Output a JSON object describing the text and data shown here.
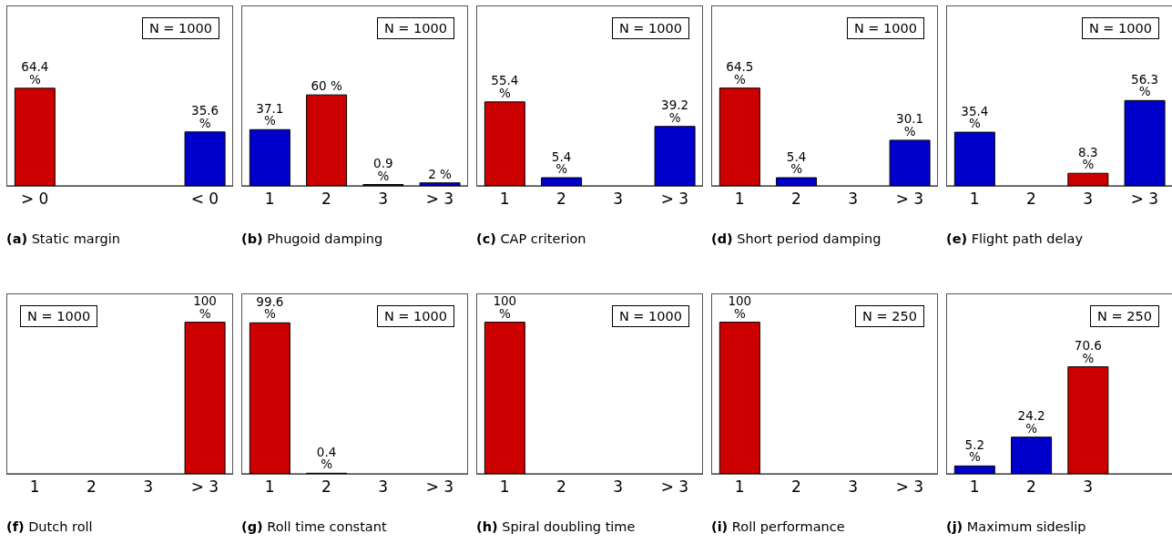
{
  "chart_data": [
    {
      "type": "bar",
      "title": "(a) Static margin",
      "categories": [
        "> 0",
        null,
        null,
        "< 0"
      ],
      "values": [
        64.4,
        null,
        null,
        35.6
      ],
      "colors": [
        "#cc0000",
        null,
        null,
        "#0000cc"
      ],
      "value_labels": [
        "64.4 %",
        null,
        null,
        "35.6 %"
      ],
      "annotations": [
        "N = 1000"
      ]
    },
    {
      "type": "bar",
      "title": "(b) Phugoid damping",
      "categories": [
        "1",
        "2",
        "3",
        "> 3"
      ],
      "values": [
        37.1,
        60,
        0.9,
        2
      ],
      "colors": [
        "#0000cc",
        "#cc0000",
        "#0000cc",
        "#0000cc"
      ],
      "value_labels": [
        "37.1 %",
        "60 %",
        "0.9 %",
        "2 %"
      ],
      "annotations": [
        "N = 1000"
      ]
    },
    {
      "type": "bar",
      "title": "(c) CAP criterion",
      "categories": [
        "1",
        "2",
        "3",
        "> 3"
      ],
      "values": [
        55.4,
        5.4,
        null,
        39.2
      ],
      "colors": [
        "#cc0000",
        "#0000cc",
        null,
        "#0000cc"
      ],
      "value_labels": [
        "55.4 %",
        "5.4 %",
        null,
        "39.2 %"
      ],
      "annotations": [
        "N = 1000"
      ]
    },
    {
      "type": "bar",
      "title": "(d) Short period damping",
      "categories": [
        "1",
        "2",
        "3",
        "> 3"
      ],
      "values": [
        64.5,
        5.4,
        null,
        30.1
      ],
      "colors": [
        "#cc0000",
        "#0000cc",
        null,
        "#0000cc"
      ],
      "value_labels": [
        "64.5 %",
        "5.4 %",
        null,
        "30.1 %"
      ],
      "annotations": [
        "N = 1000"
      ]
    },
    {
      "type": "bar",
      "title": "(e) Flight path delay",
      "categories": [
        "1",
        "2",
        "3",
        "> 3"
      ],
      "values": [
        35.4,
        null,
        8.3,
        56.3
      ],
      "colors": [
        "#0000cc",
        null,
        "#cc0000",
        "#0000cc"
      ],
      "value_labels": [
        "35.4 %",
        null,
        "8.3 %",
        "56.3 %"
      ],
      "annotations": [
        "N = 1000"
      ]
    },
    {
      "type": "bar",
      "title": "(f) Dutch roll",
      "categories": [
        "1",
        "2",
        "3",
        "> 3"
      ],
      "values": [
        null,
        null,
        null,
        100
      ],
      "colors": [
        null,
        null,
        null,
        "#cc0000"
      ],
      "value_labels": [
        null,
        null,
        null,
        "100 %"
      ],
      "annotations": [
        "N = 1000"
      ]
    },
    {
      "type": "bar",
      "title": "(g) Roll time constant",
      "categories": [
        "1",
        "2",
        "3",
        "> 3"
      ],
      "values": [
        99.6,
        0.4,
        null,
        null
      ],
      "colors": [
        "#cc0000",
        "#0000cc",
        null,
        null
      ],
      "value_labels": [
        "99.6 %",
        "0.4 %",
        null,
        null
      ],
      "annotations": [
        "N = 1000"
      ]
    },
    {
      "type": "bar",
      "title": "(h) Spiral doubling time",
      "categories": [
        "1",
        "2",
        "3",
        "> 3"
      ],
      "values": [
        100,
        null,
        null,
        null
      ],
      "colors": [
        "#cc0000",
        null,
        null,
        null
      ],
      "value_labels": [
        "100 %",
        null,
        null,
        null
      ],
      "annotations": [
        "N = 1000"
      ]
    },
    {
      "type": "bar",
      "title": "(i) Roll performance",
      "categories": [
        "1",
        "2",
        "3",
        "> 3"
      ],
      "values": [
        100,
        null,
        null,
        null
      ],
      "colors": [
        "#cc0000",
        null,
        null,
        null
      ],
      "value_labels": [
        "100 %",
        null,
        null,
        null
      ],
      "annotations": [
        "N = 250"
      ]
    },
    {
      "type": "bar",
      "title": "(j) Maximum sideslip",
      "categories": [
        "1",
        "2",
        "3",
        null
      ],
      "values": [
        5.2,
        24.2,
        70.6,
        null
      ],
      "colors": [
        "#0000cc",
        "#0000cc",
        "#cc0000",
        null
      ],
      "value_labels": [
        "5.2 %",
        "24.2 %",
        "70.6 %",
        null
      ],
      "annotations": [
        "N = 250"
      ]
    }
  ]
}
